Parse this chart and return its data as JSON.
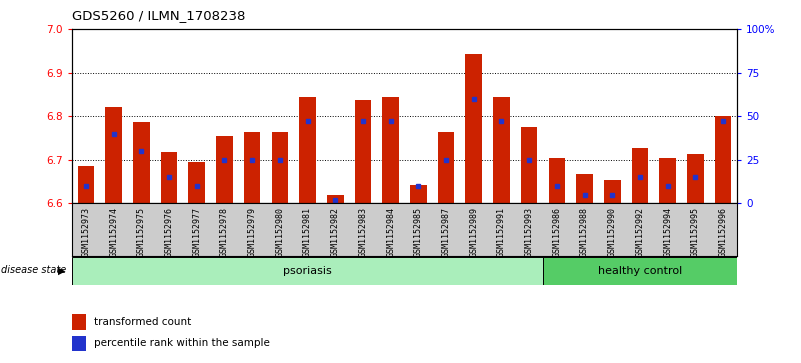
{
  "title": "GDS5260 / ILMN_1708238",
  "samples": [
    "GSM1152973",
    "GSM1152974",
    "GSM1152975",
    "GSM1152976",
    "GSM1152977",
    "GSM1152978",
    "GSM1152979",
    "GSM1152980",
    "GSM1152981",
    "GSM1152982",
    "GSM1152983",
    "GSM1152984",
    "GSM1152985",
    "GSM1152987",
    "GSM1152989",
    "GSM1152991",
    "GSM1152993",
    "GSM1152986",
    "GSM1152988",
    "GSM1152990",
    "GSM1152992",
    "GSM1152994",
    "GSM1152995",
    "GSM1152996"
  ],
  "transformed_counts": [
    6.685,
    6.82,
    6.787,
    6.717,
    6.695,
    6.754,
    6.763,
    6.763,
    6.843,
    6.62,
    6.838,
    6.843,
    6.643,
    6.763,
    6.943,
    6.843,
    6.775,
    6.703,
    6.667,
    6.653,
    6.727,
    6.703,
    6.713,
    6.8
  ],
  "percentile_ranks": [
    10,
    40,
    30,
    15,
    10,
    25,
    25,
    25,
    47,
    2,
    47,
    47,
    10,
    25,
    60,
    47,
    25,
    10,
    5,
    5,
    15,
    10,
    15,
    47
  ],
  "psoriasis_count": 17,
  "healthy_count": 7,
  "ylim_left": [
    6.6,
    7.0
  ],
  "ylim_right": [
    0,
    100
  ],
  "yticks_left": [
    6.6,
    6.7,
    6.8,
    6.9,
    7.0
  ],
  "yticks_right": [
    0,
    25,
    50,
    75,
    100
  ],
  "ytick_right_labels": [
    "0",
    "25",
    "50",
    "75",
    "100%"
  ],
  "bar_color": "#cc2200",
  "blue_color": "#2233cc",
  "psoriasis_color": "#aaeebb",
  "healthy_color": "#55cc66",
  "xtick_bg": "#cccccc",
  "plot_bg": "#ffffff"
}
